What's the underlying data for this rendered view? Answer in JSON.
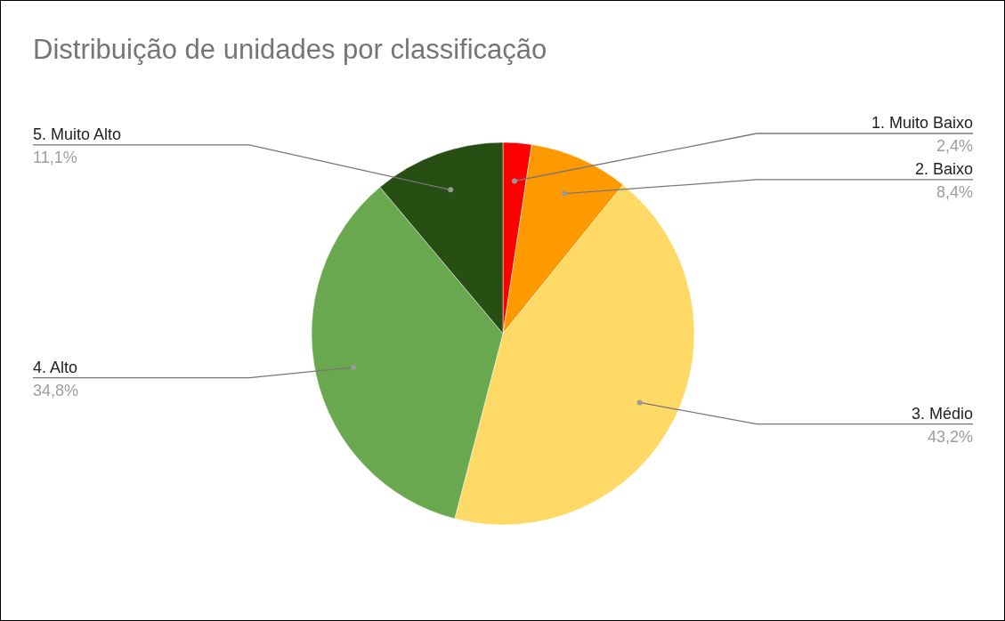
{
  "chart_data": {
    "type": "pie",
    "title": "Distribuição de unidades por classificação",
    "categories": [
      "1. Muito Baixo",
      "2. Baixo",
      "3. Médio",
      "4. Alto",
      "5. Muito Alto"
    ],
    "values": [
      2.4,
      8.4,
      43.2,
      34.8,
      11.1
    ],
    "value_labels": [
      "2,4%",
      "8,4%",
      "43,2%",
      "34,8%",
      "11,1%"
    ],
    "colors": [
      "#ff0000",
      "#ff9900",
      "#ffd966",
      "#6aa84f",
      "#274e13"
    ],
    "legend": false
  }
}
